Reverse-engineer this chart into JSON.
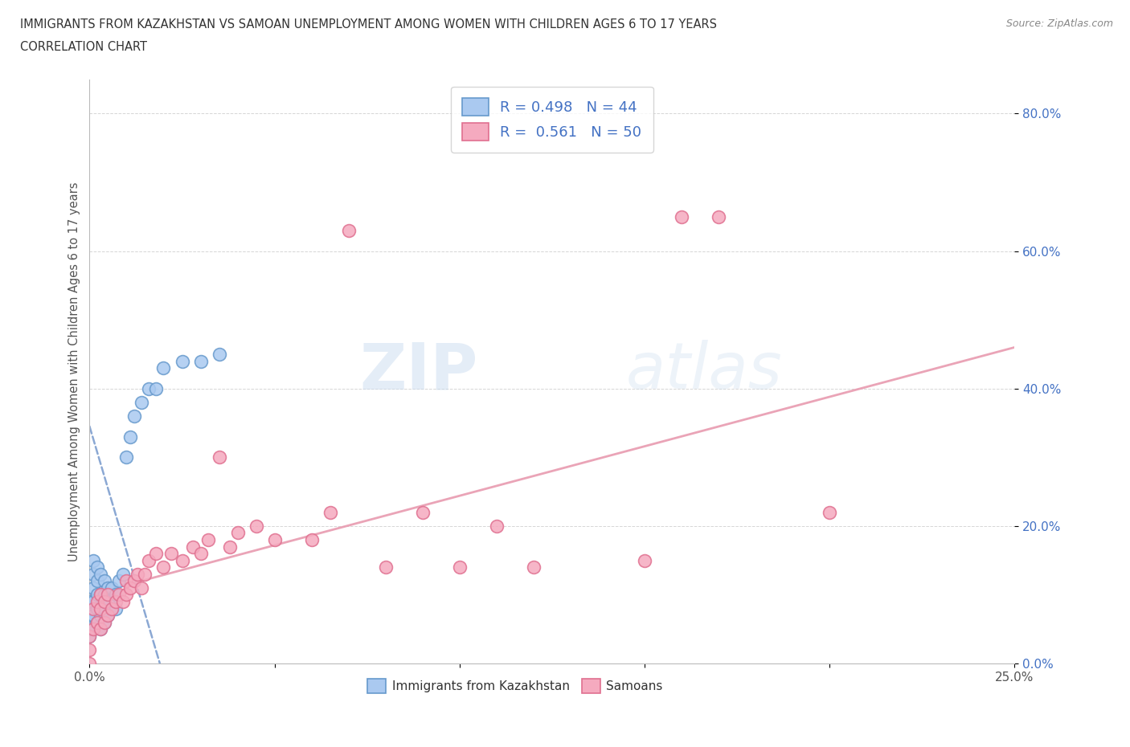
{
  "title_line1": "IMMIGRANTS FROM KAZAKHSTAN VS SAMOAN UNEMPLOYMENT AMONG WOMEN WITH CHILDREN AGES 6 TO 17 YEARS",
  "title_line2": "CORRELATION CHART",
  "source": "Source: ZipAtlas.com",
  "ylabel": "Unemployment Among Women with Children Ages 6 to 17 years",
  "xlim": [
    0.0,
    0.25
  ],
  "ylim": [
    0.0,
    0.85
  ],
  "xticks": [
    0.0,
    0.05,
    0.1,
    0.15,
    0.2,
    0.25
  ],
  "yticks": [
    0.0,
    0.2,
    0.4,
    0.6,
    0.8
  ],
  "ytick_labels": [
    "0.0%",
    "20.0%",
    "40.0%",
    "60.0%",
    "80.0%"
  ],
  "xtick_labels": [
    "0.0%",
    "",
    "",
    "",
    "",
    "25.0%"
  ],
  "kazakhstan_color": "#aac9f0",
  "samoa_color": "#f5aabf",
  "kazakhstan_edge": "#6699cc",
  "samoa_edge": "#e07090",
  "trend_kazakhstan_color": "#7799cc",
  "trend_samoa_color": "#e89aaf",
  "R_kazakhstan": 0.498,
  "N_kazakhstan": 44,
  "R_samoa": 0.561,
  "N_samoa": 50,
  "watermark_zip": "ZIP",
  "watermark_atlas": "atlas",
  "kaz_x": [
    0.0,
    0.0,
    0.0,
    0.0,
    0.0,
    0.0,
    0.001,
    0.001,
    0.001,
    0.001,
    0.001,
    0.001,
    0.002,
    0.002,
    0.002,
    0.002,
    0.002,
    0.003,
    0.003,
    0.003,
    0.003,
    0.004,
    0.004,
    0.004,
    0.004,
    0.005,
    0.005,
    0.005,
    0.006,
    0.006,
    0.007,
    0.007,
    0.008,
    0.009,
    0.01,
    0.011,
    0.012,
    0.014,
    0.016,
    0.018,
    0.02,
    0.025,
    0.03,
    0.035
  ],
  "kaz_y": [
    0.04,
    0.05,
    0.06,
    0.07,
    0.08,
    0.09,
    0.05,
    0.07,
    0.09,
    0.11,
    0.13,
    0.15,
    0.06,
    0.08,
    0.1,
    0.12,
    0.14,
    0.05,
    0.07,
    0.1,
    0.13,
    0.06,
    0.08,
    0.1,
    0.12,
    0.07,
    0.09,
    0.11,
    0.08,
    0.11,
    0.08,
    0.1,
    0.12,
    0.13,
    0.3,
    0.33,
    0.36,
    0.38,
    0.4,
    0.4,
    0.43,
    0.44,
    0.44,
    0.45
  ],
  "sam_x": [
    0.0,
    0.0,
    0.0,
    0.001,
    0.001,
    0.002,
    0.002,
    0.003,
    0.003,
    0.003,
    0.004,
    0.004,
    0.005,
    0.005,
    0.006,
    0.007,
    0.008,
    0.009,
    0.01,
    0.01,
    0.011,
    0.012,
    0.013,
    0.014,
    0.015,
    0.016,
    0.018,
    0.02,
    0.022,
    0.025,
    0.028,
    0.03,
    0.032,
    0.035,
    0.038,
    0.04,
    0.045,
    0.05,
    0.06,
    0.065,
    0.07,
    0.08,
    0.09,
    0.1,
    0.11,
    0.12,
    0.15,
    0.16,
    0.17,
    0.2
  ],
  "sam_y": [
    0.0,
    0.02,
    0.04,
    0.05,
    0.08,
    0.06,
    0.09,
    0.05,
    0.08,
    0.1,
    0.06,
    0.09,
    0.07,
    0.1,
    0.08,
    0.09,
    0.1,
    0.09,
    0.1,
    0.12,
    0.11,
    0.12,
    0.13,
    0.11,
    0.13,
    0.15,
    0.16,
    0.14,
    0.16,
    0.15,
    0.17,
    0.16,
    0.18,
    0.3,
    0.17,
    0.19,
    0.2,
    0.18,
    0.18,
    0.22,
    0.63,
    0.14,
    0.22,
    0.14,
    0.2,
    0.14,
    0.15,
    0.65,
    0.65,
    0.22
  ],
  "kaz_trend_x0": 0.0,
  "kaz_trend_x1": 0.019,
  "kaz_trend_y0": 0.345,
  "kaz_trend_y1": 0.0,
  "sam_trend_x0": 0.0,
  "sam_trend_x1": 0.25,
  "sam_trend_y0": 0.1,
  "sam_trend_y1": 0.46
}
